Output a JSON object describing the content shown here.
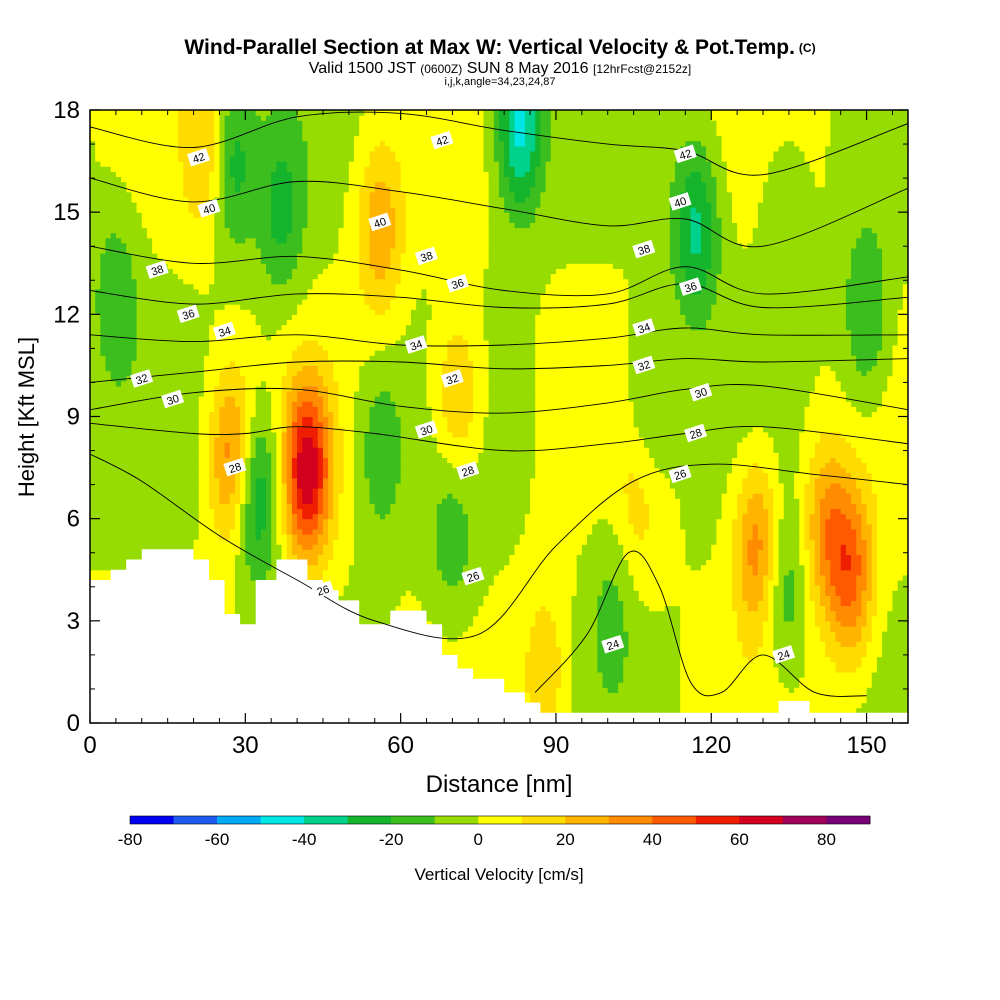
{
  "title": {
    "main": "Wind-Parallel Section at Max W: Vertical Velocity & Pot.Temp.",
    "copyright": "(C)",
    "valid": "Valid 1500 JST",
    "utc": "(0600Z)",
    "date": "SUN 8 May 2016",
    "forecast": "[12hrFcst@2152z]",
    "indices": "i,j,k,angle=34,23,24,87"
  },
  "chart_data": {
    "type": "heatmap",
    "xlabel": "Distance [nm]",
    "ylabel": "Height [Kft MSL]",
    "xlim": [
      0,
      158
    ],
    "ylim": [
      0,
      18
    ],
    "xticks": [
      0,
      30,
      60,
      90,
      120,
      150
    ],
    "yticks": [
      0,
      3,
      6,
      9,
      12,
      15,
      18
    ],
    "colorbar": {
      "label": "Vertical Velocity [cm/s]",
      "min": -80,
      "max": 90,
      "step": 10,
      "tick_values": [
        -80,
        -60,
        -40,
        -20,
        0,
        20,
        40,
        60,
        80
      ],
      "colors": [
        "#0000f2",
        "#1e5af0",
        "#00aaf5",
        "#00e6e6",
        "#00d28c",
        "#14b42d",
        "#3cbe1e",
        "#96dc00",
        "#ffff00",
        "#ffdc00",
        "#ffb400",
        "#ff8c00",
        "#ff5a00",
        "#f01e00",
        "#d2001e",
        "#a0005a",
        "#780078"
      ]
    },
    "terrain_profile": [
      [
        0,
        4.2
      ],
      [
        4,
        4.2
      ],
      [
        4,
        4.5
      ],
      [
        7,
        4.5
      ],
      [
        7,
        4.8
      ],
      [
        10,
        4.8
      ],
      [
        10,
        5.1
      ],
      [
        20,
        5.1
      ],
      [
        20,
        4.8
      ],
      [
        23,
        4.8
      ],
      [
        23,
        4.2
      ],
      [
        26,
        4.2
      ],
      [
        26,
        3.2
      ],
      [
        29,
        3.2
      ],
      [
        29,
        2.9
      ],
      [
        32,
        2.9
      ],
      [
        32,
        4.2
      ],
      [
        36,
        4.2
      ],
      [
        36,
        4.8
      ],
      [
        42,
        4.8
      ],
      [
        42,
        4.2
      ],
      [
        45,
        4.2
      ],
      [
        45,
        3.9
      ],
      [
        48,
        3.9
      ],
      [
        48,
        3.6
      ],
      [
        52,
        3.6
      ],
      [
        52,
        2.9
      ],
      [
        58,
        2.9
      ],
      [
        58,
        3.3
      ],
      [
        65,
        3.3
      ],
      [
        65,
        2.9
      ],
      [
        68,
        2.9
      ],
      [
        68,
        2.0
      ],
      [
        71,
        2.0
      ],
      [
        71,
        1.6
      ],
      [
        74,
        1.6
      ],
      [
        74,
        1.3
      ],
      [
        80,
        1.3
      ],
      [
        80,
        0.9
      ],
      [
        84,
        0.9
      ],
      [
        84,
        0.6
      ],
      [
        87,
        0.6
      ],
      [
        87,
        0.3
      ],
      [
        133,
        0.3
      ],
      [
        133,
        0.65
      ],
      [
        139,
        0.65
      ],
      [
        139,
        0.3
      ],
      [
        158,
        0.3
      ]
    ],
    "updraft_cores": [
      {
        "x": 42,
        "z": 7.4,
        "w": 65
      },
      {
        "x": 27.5,
        "z": 7.8,
        "w": 40
      },
      {
        "x": 129,
        "z": 5.2,
        "w": 38
      },
      {
        "x": 147,
        "z": 4.4,
        "w": 42
      },
      {
        "x": 142,
        "z": 5.8,
        "w": 30
      },
      {
        "x": 56,
        "z": 14.5,
        "w": 28
      },
      {
        "x": 23,
        "z": 16.8,
        "w": 25
      },
      {
        "x": 71,
        "z": 9.5,
        "w": 25
      },
      {
        "x": 88,
        "z": 1.5,
        "w": 18
      },
      {
        "x": 106,
        "z": 6.5,
        "w": 14
      }
    ],
    "downdraft_cores": [
      {
        "x": 83,
        "z": 17.6,
        "w": -45
      },
      {
        "x": 32,
        "z": 6.8,
        "w": -35
      },
      {
        "x": 27,
        "z": 16.5,
        "w": -30
      },
      {
        "x": 117,
        "z": 14.5,
        "w": -33
      },
      {
        "x": 150,
        "z": 12.0,
        "w": -22
      },
      {
        "x": 37,
        "z": 15.0,
        "w": -22
      },
      {
        "x": 56,
        "z": 8.0,
        "w": -18
      },
      {
        "x": 70,
        "z": 5.5,
        "w": -16
      },
      {
        "x": 5,
        "z": 12.5,
        "w": -18
      },
      {
        "x": 134,
        "z": 4.0,
        "w": -20
      },
      {
        "x": 108,
        "z": 9.3,
        "w": -16
      },
      {
        "x": 101,
        "z": 3.5,
        "w": -12
      },
      {
        "x": 134,
        "z": 14.8,
        "w": -10
      }
    ],
    "theta_contours": [
      {
        "label": "42",
        "points": [
          [
            0,
            17.5
          ],
          [
            20,
            16.9
          ],
          [
            40,
            17.8
          ],
          [
            60,
            17.9
          ],
          [
            80,
            17.4
          ],
          [
            100,
            17.0
          ],
          [
            115,
            16.8
          ],
          [
            130,
            16.1
          ],
          [
            158,
            17.6
          ]
        ]
      },
      {
        "label": "40",
        "points": [
          [
            0,
            16.0
          ],
          [
            20,
            15.3
          ],
          [
            40,
            15.9
          ],
          [
            60,
            15.6
          ],
          [
            80,
            15.1
          ],
          [
            100,
            14.6
          ],
          [
            115,
            14.8
          ],
          [
            130,
            14.0
          ],
          [
            158,
            15.7
          ]
        ]
      },
      {
        "label": "38",
        "points": [
          [
            0,
            14.0
          ],
          [
            20,
            13.5
          ],
          [
            40,
            13.7
          ],
          [
            60,
            13.3
          ],
          [
            80,
            12.7
          ],
          [
            100,
            12.6
          ],
          [
            115,
            13.4
          ],
          [
            130,
            12.6
          ],
          [
            158,
            13.1
          ]
        ]
      },
      {
        "label": "36",
        "points": [
          [
            0,
            12.7
          ],
          [
            20,
            12.3
          ],
          [
            40,
            12.6
          ],
          [
            60,
            12.5
          ],
          [
            80,
            12.2
          ],
          [
            100,
            12.3
          ],
          [
            115,
            12.9
          ],
          [
            130,
            12.2
          ],
          [
            158,
            12.5
          ]
        ]
      },
      {
        "label": "34",
        "points": [
          [
            0,
            11.4
          ],
          [
            20,
            11.2
          ],
          [
            40,
            11.4
          ],
          [
            60,
            11.1
          ],
          [
            80,
            11.1
          ],
          [
            100,
            11.3
          ],
          [
            115,
            11.6
          ],
          [
            130,
            11.4
          ],
          [
            158,
            11.4
          ]
        ]
      },
      {
        "label": "32",
        "points": [
          [
            0,
            10.0
          ],
          [
            20,
            10.3
          ],
          [
            40,
            10.6
          ],
          [
            60,
            10.6
          ],
          [
            80,
            10.4
          ],
          [
            100,
            10.5
          ],
          [
            115,
            10.7
          ],
          [
            130,
            10.6
          ],
          [
            158,
            10.7
          ]
        ]
      },
      {
        "label": "30",
        "points": [
          [
            0,
            9.2
          ],
          [
            20,
            9.7
          ],
          [
            40,
            9.8
          ],
          [
            60,
            9.3
          ],
          [
            80,
            9.1
          ],
          [
            100,
            9.4
          ],
          [
            115,
            9.8
          ],
          [
            130,
            9.9
          ],
          [
            158,
            9.2
          ]
        ]
      },
      {
        "label": "28",
        "points": [
          [
            0,
            8.8
          ],
          [
            20,
            8.5
          ],
          [
            30,
            8.5
          ],
          [
            40,
            8.7
          ],
          [
            55,
            8.5
          ],
          [
            80,
            8.0
          ],
          [
            100,
            8.2
          ],
          [
            115,
            8.5
          ],
          [
            130,
            8.7
          ],
          [
            158,
            8.2
          ]
        ]
      },
      {
        "label": "26",
        "points": [
          [
            0,
            7.9
          ],
          [
            10,
            7.1
          ],
          [
            25,
            5.5
          ],
          [
            40,
            4.2
          ],
          [
            55,
            3.0
          ],
          [
            75,
            2.6
          ],
          [
            90,
            5.2
          ],
          [
            105,
            7.1
          ],
          [
            120,
            7.6
          ],
          [
            140,
            7.3
          ],
          [
            158,
            7.0
          ]
        ]
      },
      {
        "label": "24",
        "points": [
          [
            86,
            0.9
          ],
          [
            96,
            2.6
          ],
          [
            104,
            5.0
          ],
          [
            110,
            4.0
          ],
          [
            116,
            1.2
          ],
          [
            122,
            0.9
          ],
          [
            130,
            2.0
          ],
          [
            140,
            0.9
          ],
          [
            150,
            0.8
          ]
        ]
      }
    ],
    "contour_labels": [
      {
        "text": "42",
        "x": 21,
        "z": 16.6
      },
      {
        "text": "40",
        "x": 23,
        "z": 15.1
      },
      {
        "text": "38",
        "x": 13,
        "z": 13.3
      },
      {
        "text": "36",
        "x": 19,
        "z": 12.0
      },
      {
        "text": "34",
        "x": 26,
        "z": 11.5
      },
      {
        "text": "32",
        "x": 10,
        "z": 10.1
      },
      {
        "text": "30",
        "x": 16,
        "z": 9.5
      },
      {
        "text": "28",
        "x": 28,
        "z": 7.5
      },
      {
        "text": "42",
        "x": 68,
        "z": 17.1
      },
      {
        "text": "40",
        "x": 56,
        "z": 14.7
      },
      {
        "text": "38",
        "x": 65,
        "z": 13.7
      },
      {
        "text": "36",
        "x": 71,
        "z": 12.9
      },
      {
        "text": "34",
        "x": 63,
        "z": 11.1
      },
      {
        "text": "32",
        "x": 70,
        "z": 10.1
      },
      {
        "text": "30",
        "x": 65,
        "z": 8.6
      },
      {
        "text": "28",
        "x": 73,
        "z": 7.4
      },
      {
        "text": "26",
        "x": 45,
        "z": 3.9
      },
      {
        "text": "26",
        "x": 74,
        "z": 4.3
      },
      {
        "text": "24",
        "x": 101,
        "z": 2.3
      },
      {
        "text": "42",
        "x": 115,
        "z": 16.7
      },
      {
        "text": "40",
        "x": 114,
        "z": 15.3
      },
      {
        "text": "38",
        "x": 107,
        "z": 13.9
      },
      {
        "text": "36",
        "x": 116,
        "z": 12.8
      },
      {
        "text": "34",
        "x": 107,
        "z": 11.6
      },
      {
        "text": "32",
        "x": 107,
        "z": 10.5
      },
      {
        "text": "30",
        "x": 118,
        "z": 9.7
      },
      {
        "text": "28",
        "x": 117,
        "z": 8.5
      },
      {
        "text": "26",
        "x": 114,
        "z": 7.3
      },
      {
        "text": "24",
        "x": 134,
        "z": 2.0
      }
    ]
  }
}
